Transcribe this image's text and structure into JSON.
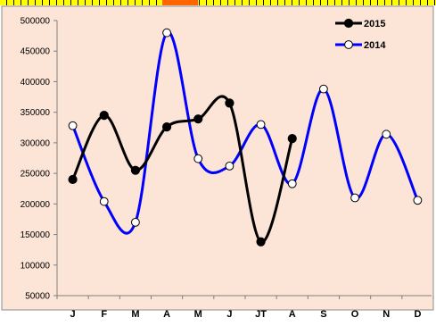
{
  "chart_data": {
    "type": "line",
    "title": "",
    "xlabel": "",
    "ylabel": "",
    "categories": [
      "J",
      "F",
      "M",
      "A",
      "M",
      "J",
      "JT",
      "A",
      "S",
      "O",
      "N",
      "D"
    ],
    "ylim": [
      50000,
      500000
    ],
    "yticks": [
      50000,
      100000,
      150000,
      200000,
      250000,
      300000,
      350000,
      400000,
      450000,
      500000
    ],
    "grid": false,
    "legend_position": "top-right",
    "smooth": true,
    "series": [
      {
        "name": "2015",
        "color": "#000000",
        "marker": "filled-circle",
        "values": [
          240000,
          345000,
          255000,
          326000,
          339000,
          365000,
          138000,
          307000,
          null,
          null,
          null,
          null
        ]
      },
      {
        "name": "2014",
        "color": "#0000ff",
        "marker": "open-circle",
        "values": [
          328000,
          204000,
          170000,
          480000,
          274000,
          262000,
          330000,
          233000,
          388000,
          210000,
          314000,
          206000
        ]
      }
    ]
  },
  "style": {
    "plot_background": "#fce4d6",
    "top_strip_colors": [
      "#ffff00",
      "#000000",
      "#ff6600"
    ]
  }
}
